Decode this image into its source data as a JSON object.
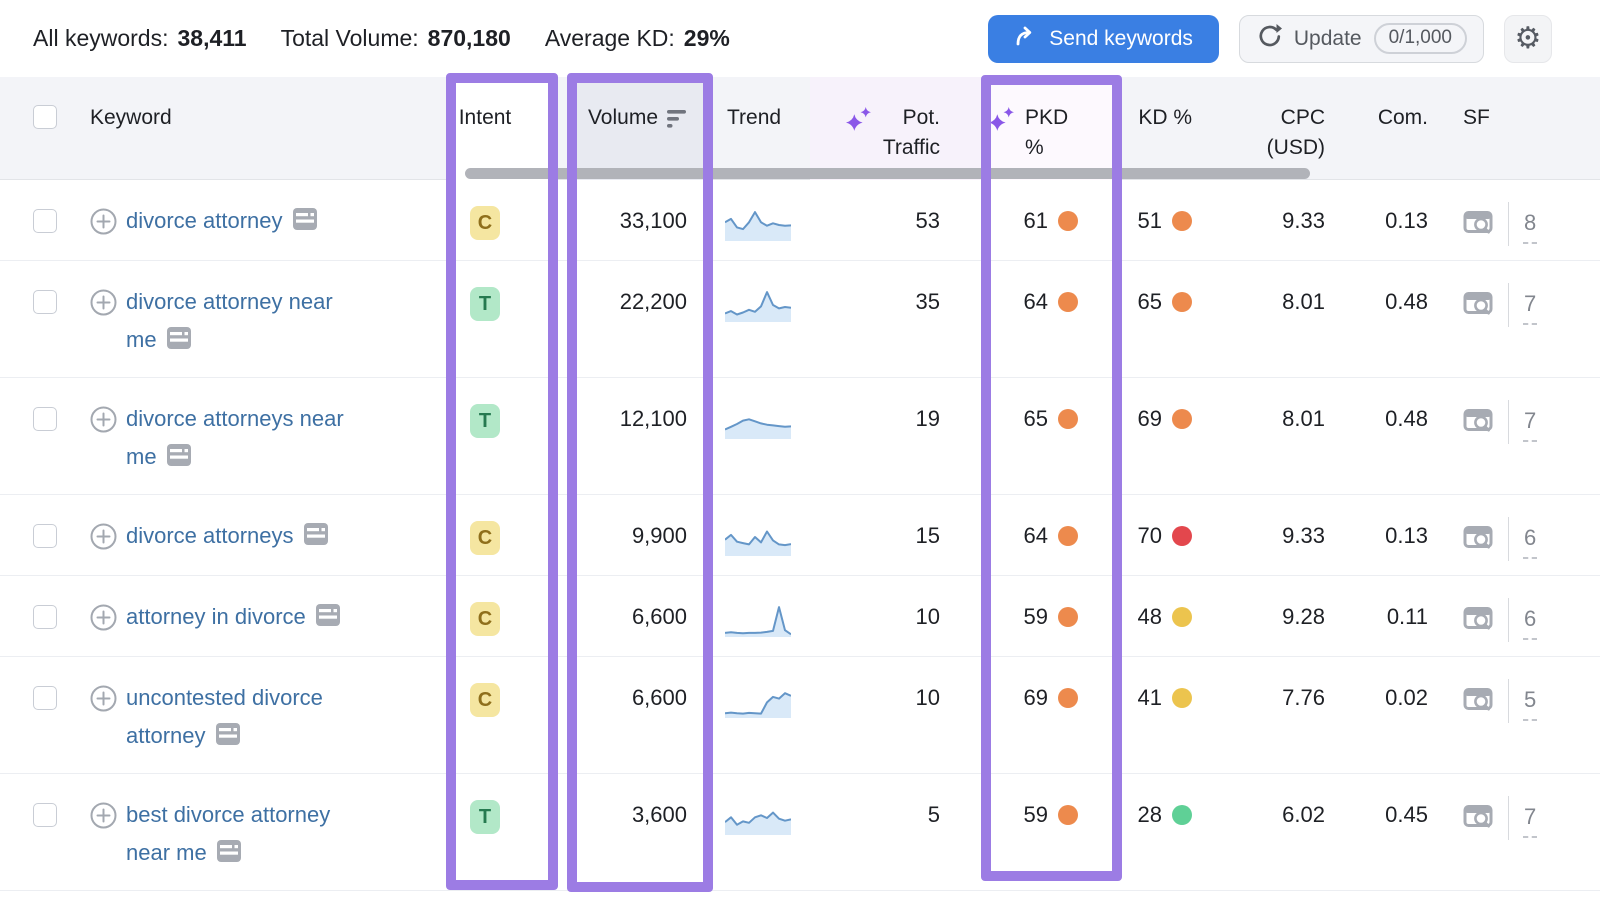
{
  "topbar": {
    "stats": [
      {
        "label": "All keywords:",
        "value": "38,411"
      },
      {
        "label": "Total Volume:",
        "value": "870,180"
      },
      {
        "label": "Average KD:",
        "value": "29%"
      }
    ],
    "send_keywords_label": "Send keywords",
    "update_label": "Update",
    "update_quota": "0/1,000"
  },
  "table": {
    "headers": {
      "keyword": "Keyword",
      "intent": "Intent",
      "volume": "Volume",
      "trend": "Trend",
      "pot_traffic_line1": "Pot.",
      "pot_traffic_line2": "Traffic",
      "pkd": "PKD %",
      "kd": "KD %",
      "cpc_line1": "CPC",
      "cpc_line2": "(USD)",
      "com": "Com.",
      "sf": "SF"
    },
    "rows": [
      {
        "keyword": "divorce attorney",
        "lines": [
          "divorce attorney"
        ],
        "intent": "C",
        "volume": "33,100",
        "trend": [
          55,
          65,
          40,
          35,
          55,
          85,
          55,
          45,
          52,
          47,
          45,
          46
        ],
        "pot_traffic": "53",
        "pkd": "61",
        "pkd_level": "orange",
        "kd": "51",
        "kd_level": "orange",
        "cpc": "9.33",
        "com": "0.13",
        "sf_count": "8"
      },
      {
        "keyword": "divorce attorney near me",
        "lines": [
          "divorce attorney near",
          "me"
        ],
        "intent": "T",
        "volume": "22,200",
        "trend": [
          25,
          32,
          22,
          28,
          36,
          30,
          46,
          88,
          50,
          40,
          44,
          42
        ],
        "pot_traffic": "35",
        "pkd": "64",
        "pkd_level": "orange",
        "kd": "65",
        "kd_level": "orange",
        "cpc": "8.01",
        "com": "0.48",
        "sf_count": "7"
      },
      {
        "keyword": "divorce attorneys near me",
        "lines": [
          "divorce attorneys near",
          "me"
        ],
        "intent": "T",
        "volume": "12,100",
        "trend": [
          28,
          36,
          44,
          54,
          58,
          52,
          46,
          42,
          40,
          38,
          36,
          37
        ],
        "pot_traffic": "19",
        "pkd": "65",
        "pkd_level": "orange",
        "kd": "69",
        "kd_level": "orange",
        "cpc": "8.01",
        "com": "0.48",
        "sf_count": "7"
      },
      {
        "keyword": "divorce attorneys",
        "lines": [
          "divorce attorneys"
        ],
        "intent": "C",
        "volume": "9,900",
        "trend": [
          48,
          62,
          42,
          38,
          34,
          56,
          40,
          72,
          46,
          34,
          32,
          35
        ],
        "pot_traffic": "15",
        "pkd": "64",
        "pkd_level": "orange",
        "kd": "70",
        "kd_level": "red",
        "cpc": "9.33",
        "com": "0.13",
        "sf_count": "6"
      },
      {
        "keyword": "attorney in divorce",
        "lines": [
          "attorney in divorce"
        ],
        "intent": "C",
        "volume": "6,600",
        "trend": [
          12,
          14,
          12,
          11,
          12,
          12,
          13,
          15,
          18,
          88,
          20,
          8
        ],
        "pot_traffic": "10",
        "pkd": "59",
        "pkd_level": "orange",
        "kd": "48",
        "kd_level": "yellow",
        "cpc": "9.28",
        "com": "0.11",
        "sf_count": "6"
      },
      {
        "keyword": "uncontested divorce attorney",
        "lines": [
          "uncontested divorce",
          "attorney"
        ],
        "intent": "C",
        "volume": "6,600",
        "trend": [
          14,
          16,
          14,
          13,
          15,
          14,
          13,
          46,
          62,
          57,
          73,
          65
        ],
        "pot_traffic": "10",
        "pkd": "69",
        "pkd_level": "orange",
        "kd": "41",
        "kd_level": "yellow",
        "cpc": "7.76",
        "com": "0.02",
        "sf_count": "5"
      },
      {
        "keyword": "best divorce attorney near me",
        "lines": [
          "best divorce attorney",
          "near me"
        ],
        "intent": "T",
        "volume": "3,600",
        "trend": [
          38,
          52,
          30,
          40,
          36,
          52,
          58,
          50,
          66,
          48,
          42,
          46
        ],
        "pot_traffic": "5",
        "pkd": "59",
        "pkd_level": "orange",
        "kd": "28",
        "kd_level": "green",
        "cpc": "6.02",
        "com": "0.45",
        "sf_count": "7"
      }
    ]
  },
  "colors": {
    "highlight": "#9c7ce4",
    "send_button": "#3a7fe3",
    "link": "#3e70a3",
    "sparkline_line": "#6496c8",
    "sparkline_fill": "#d9e9f8",
    "intent": {
      "C": {
        "bg": "#f5e6a1",
        "text": "#8f6f1b"
      },
      "T": {
        "bg": "#b2e8c8",
        "text": "#267a50"
      }
    },
    "dots": {
      "orange": "#ed8a4d",
      "red": "#e3474d",
      "yellow": "#ecc44e",
      "green": "#5fd096"
    }
  }
}
